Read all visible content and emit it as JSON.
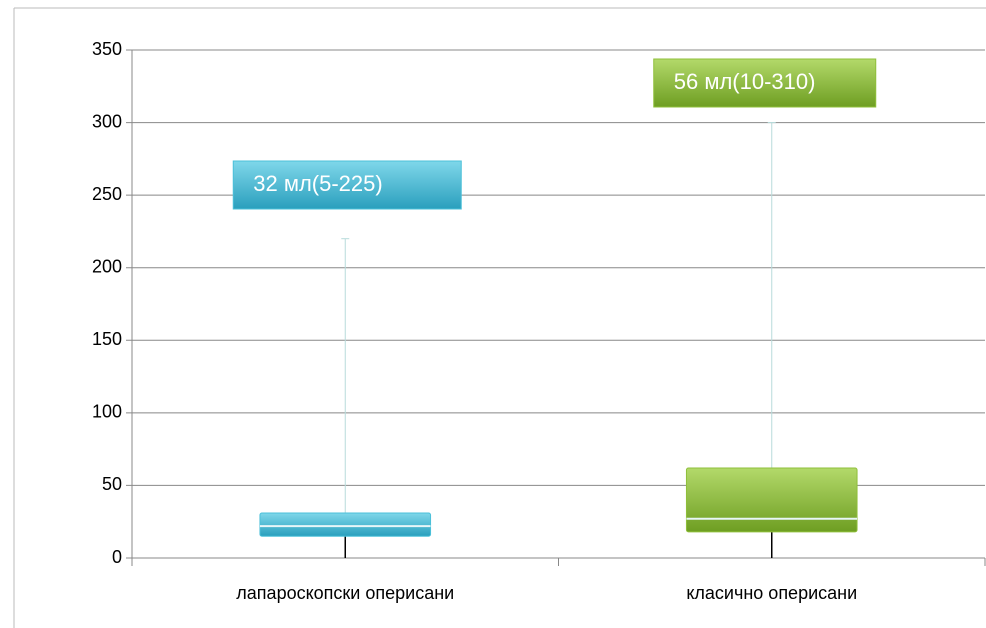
{
  "chart_data": {
    "type": "box",
    "categories": [
      "лапароскопски оперисани",
      "класично оперисани"
    ],
    "boxes": [
      {
        "low": 0,
        "q1": 15,
        "median": 22,
        "q3": 31,
        "high": 220,
        "color": "#4bc0d9",
        "annotation": "32 мл(5-225)"
      },
      {
        "low": 0,
        "q1": 18,
        "median": 27,
        "q3": 62,
        "high": 300,
        "color": "#8fbf3a",
        "annotation": "56 мл(10-310)"
      }
    ],
    "ylim": [
      0,
      350
    ],
    "yticks": [
      0,
      50,
      100,
      150,
      200,
      250,
      300,
      350
    ],
    "grid": true
  }
}
